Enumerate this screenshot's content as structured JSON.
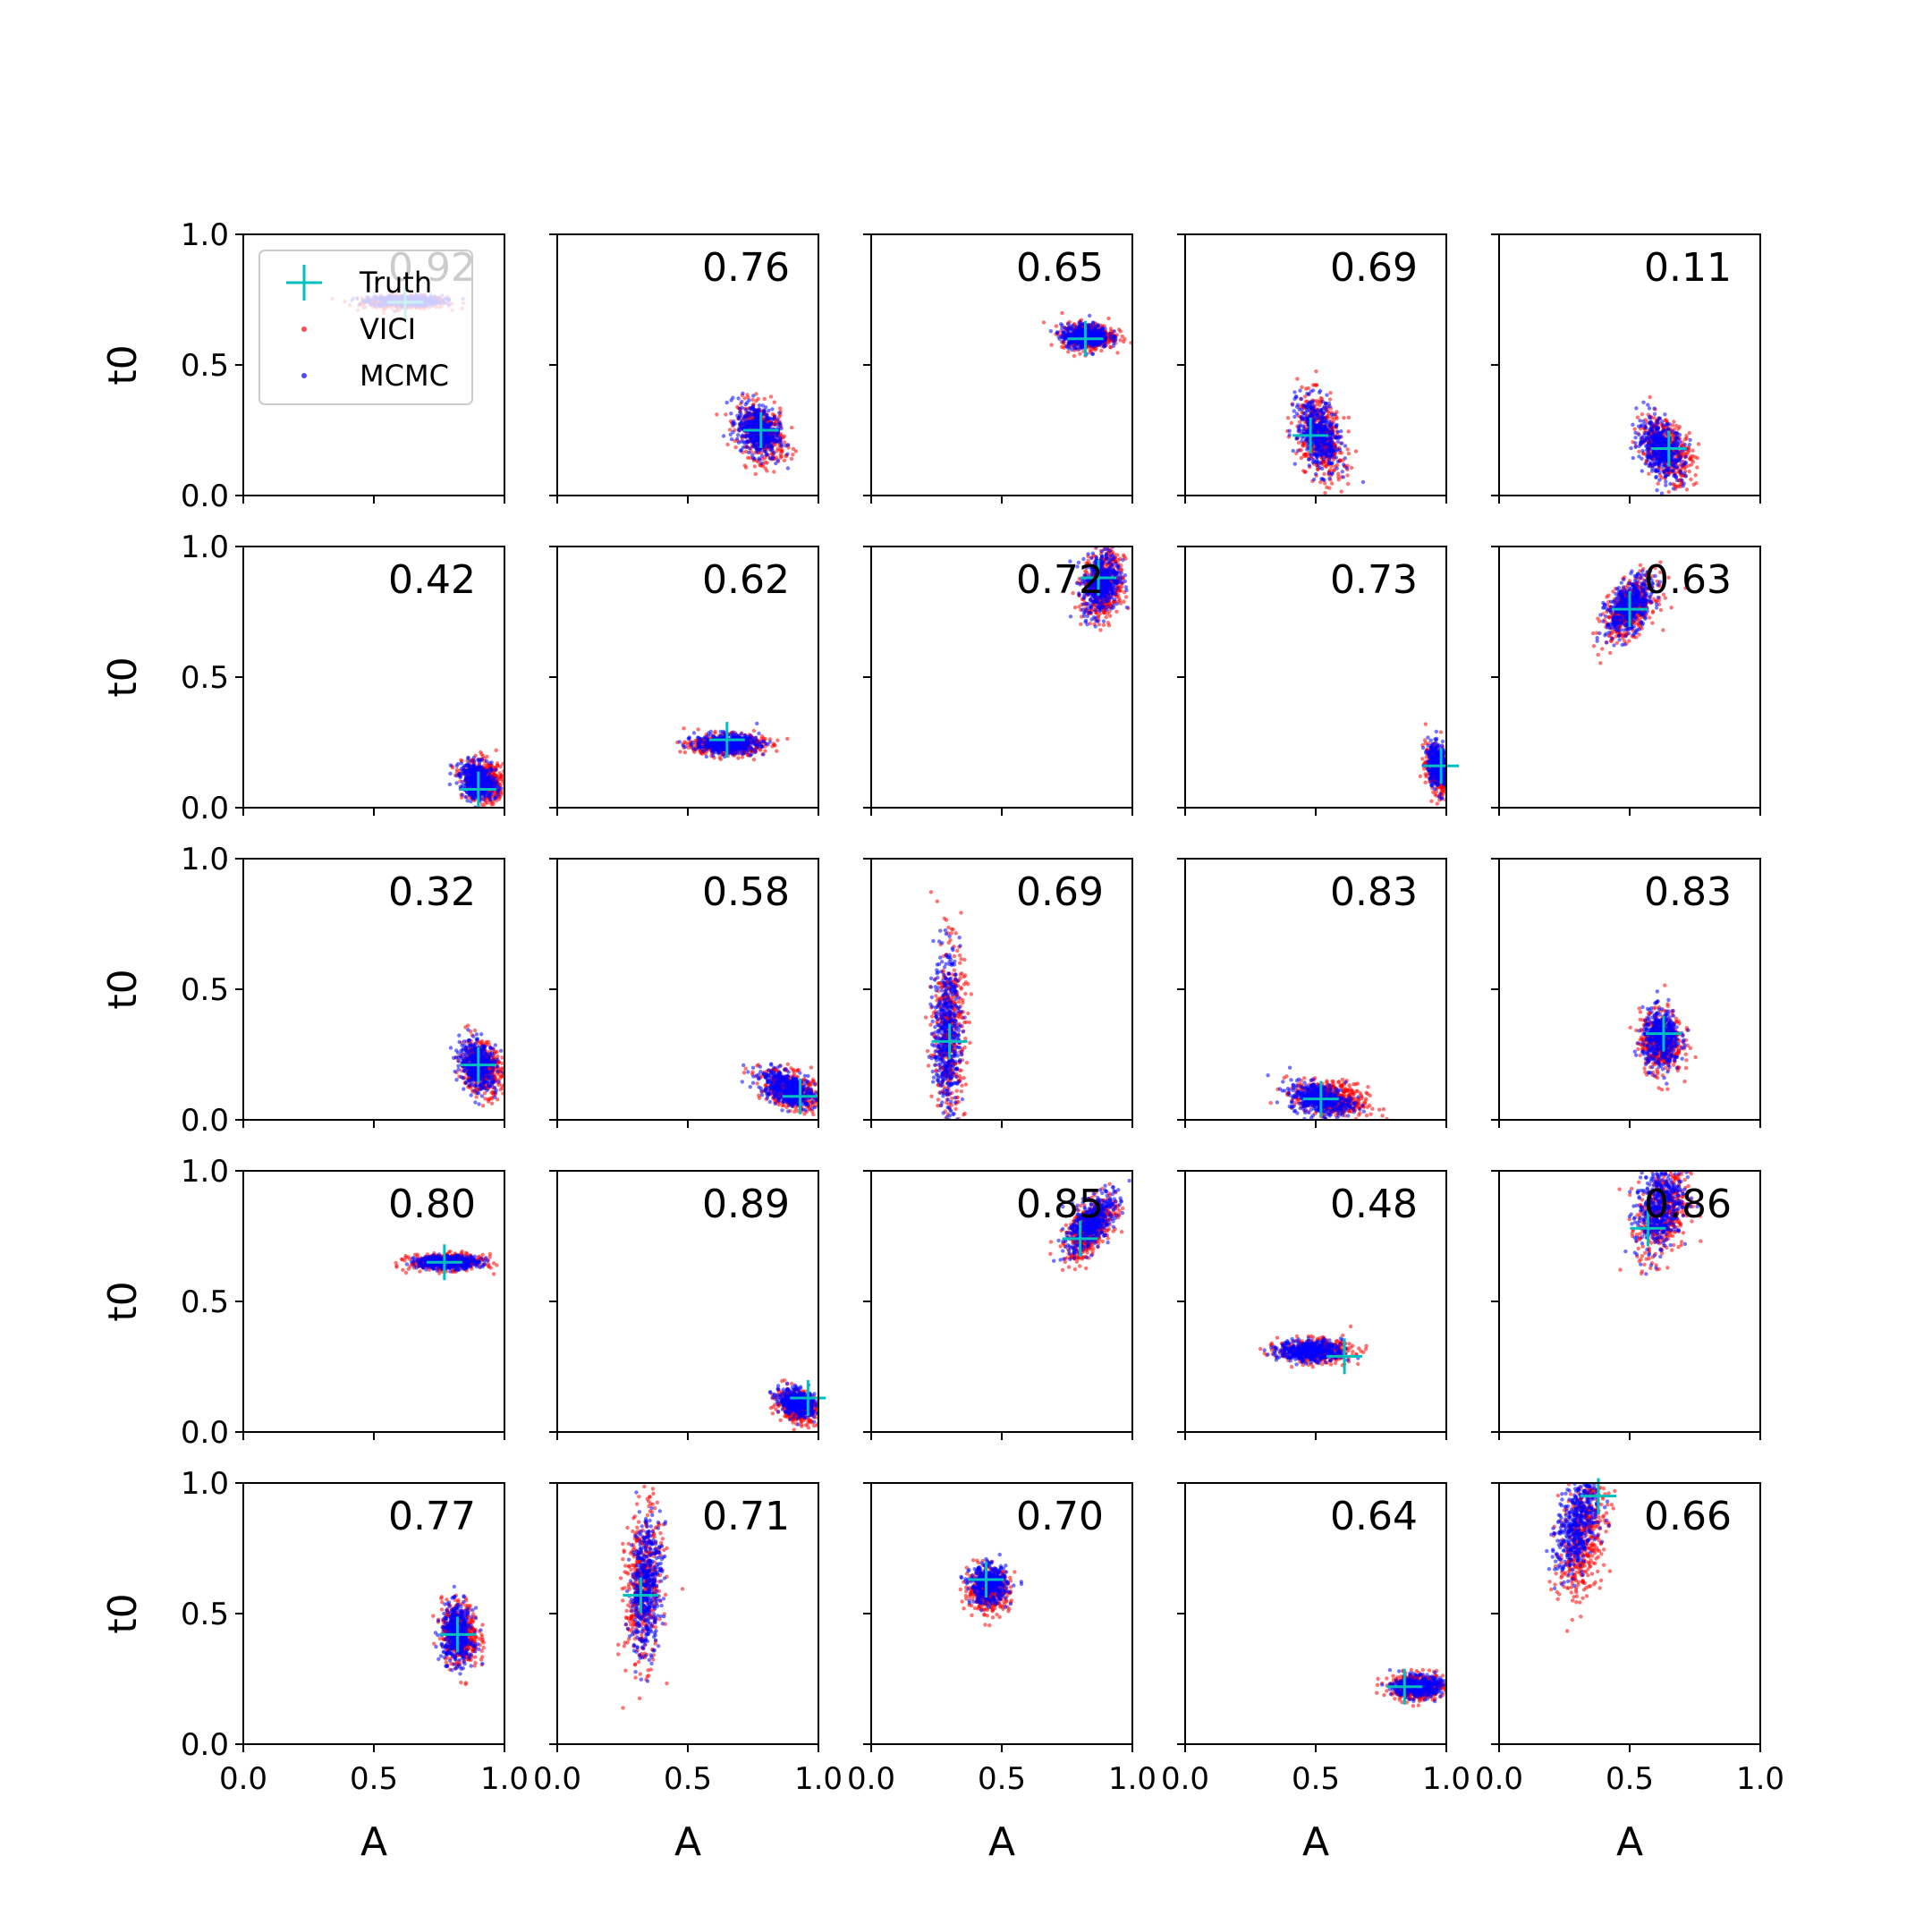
{
  "chart_data": {
    "type": "scatter",
    "rows": 5,
    "cols": 5,
    "xlabel": "A",
    "ylabel": "t0",
    "xlim": [
      0.0,
      1.0
    ],
    "ylim": [
      0.0,
      1.0
    ],
    "xticks": [
      "0.0",
      "0.5",
      "1.0"
    ],
    "yticks": [
      "0.0",
      "0.5",
      "1.0"
    ],
    "legend": {
      "location": "upper-left of first panel",
      "entries": [
        {
          "label": "Truth",
          "marker": "plus",
          "color": "#00bfbf"
        },
        {
          "label": "VICI",
          "marker": "dot",
          "color": "#ff0000"
        },
        {
          "label": "MCMC",
          "marker": "dot",
          "color": "#0000ff"
        }
      ]
    },
    "series_colors": {
      "vici": "#ff0000",
      "mcmc": "#0000ff",
      "truth": "#00bfbf"
    },
    "panels": [
      {
        "overlap": "0.92",
        "truth": [
          0.62,
          0.74
        ],
        "vici": {
          "mean": [
            0.62,
            0.74
          ],
          "sd": [
            0.08,
            0.012
          ],
          "rho": 0.0
        },
        "mcmc": {
          "mean": [
            0.62,
            0.745
          ],
          "sd": [
            0.07,
            0.01
          ],
          "rho": 0.0
        }
      },
      {
        "overlap": "0.76",
        "truth": [
          0.78,
          0.25
        ],
        "vici": {
          "mean": [
            0.78,
            0.24
          ],
          "sd": [
            0.045,
            0.055
          ],
          "rho": -0.3
        },
        "mcmc": {
          "mean": [
            0.77,
            0.25
          ],
          "sd": [
            0.04,
            0.05
          ],
          "rho": -0.3
        }
      },
      {
        "overlap": "0.65",
        "truth": [
          0.82,
          0.6
        ],
        "vici": {
          "mean": [
            0.83,
            0.61
          ],
          "sd": [
            0.05,
            0.025
          ],
          "rho": 0.0
        },
        "mcmc": {
          "mean": [
            0.82,
            0.61
          ],
          "sd": [
            0.045,
            0.022
          ],
          "rho": 0.0
        }
      },
      {
        "overlap": "0.69",
        "truth": [
          0.48,
          0.23
        ],
        "vici": {
          "mean": [
            0.52,
            0.22
          ],
          "sd": [
            0.045,
            0.08
          ],
          "rho": -0.4
        },
        "mcmc": {
          "mean": [
            0.51,
            0.23
          ],
          "sd": [
            0.04,
            0.07
          ],
          "rho": -0.4
        }
      },
      {
        "overlap": "0.11",
        "truth": [
          0.65,
          0.18
        ],
        "vici": {
          "mean": [
            0.64,
            0.18
          ],
          "sd": [
            0.05,
            0.06
          ],
          "rho": -0.4
        },
        "mcmc": {
          "mean": [
            0.62,
            0.18
          ],
          "sd": [
            0.045,
            0.055
          ],
          "rho": -0.4
        }
      },
      {
        "overlap": "0.42",
        "truth": [
          0.9,
          0.07
        ],
        "vici": {
          "mean": [
            0.92,
            0.1
          ],
          "sd": [
            0.04,
            0.04
          ],
          "rho": -0.2
        },
        "mcmc": {
          "mean": [
            0.9,
            0.1
          ],
          "sd": [
            0.035,
            0.035
          ],
          "rho": -0.2
        }
      },
      {
        "overlap": "0.62",
        "truth": [
          0.65,
          0.26
        ],
        "vici": {
          "mean": [
            0.65,
            0.24
          ],
          "sd": [
            0.07,
            0.02
          ],
          "rho": 0.0
        },
        "mcmc": {
          "mean": [
            0.65,
            0.245
          ],
          "sd": [
            0.06,
            0.018
          ],
          "rho": 0.0
        }
      },
      {
        "overlap": "0.72",
        "truth": [
          0.87,
          0.88
        ],
        "vici": {
          "mean": [
            0.89,
            0.85
          ],
          "sd": [
            0.04,
            0.07
          ],
          "rho": 0.2
        },
        "mcmc": {
          "mean": [
            0.88,
            0.86
          ],
          "sd": [
            0.035,
            0.06
          ],
          "rho": 0.2
        }
      },
      {
        "overlap": "0.73",
        "truth": [
          0.98,
          0.16
        ],
        "vici": {
          "mean": [
            0.97,
            0.14
          ],
          "sd": [
            0.025,
            0.045
          ],
          "rho": -0.3
        },
        "mcmc": {
          "mean": [
            0.97,
            0.16
          ],
          "sd": [
            0.02,
            0.04
          ],
          "rho": -0.3
        }
      },
      {
        "overlap": "0.63",
        "truth": [
          0.5,
          0.76
        ],
        "vici": {
          "mean": [
            0.5,
            0.76
          ],
          "sd": [
            0.05,
            0.06
          ],
          "rho": 0.5
        },
        "mcmc": {
          "mean": [
            0.5,
            0.77
          ],
          "sd": [
            0.045,
            0.055
          ],
          "rho": 0.5
        }
      },
      {
        "overlap": "0.32",
        "truth": [
          0.9,
          0.21
        ],
        "vici": {
          "mean": [
            0.91,
            0.2
          ],
          "sd": [
            0.04,
            0.05
          ],
          "rho": -0.2
        },
        "mcmc": {
          "mean": [
            0.9,
            0.21
          ],
          "sd": [
            0.035,
            0.045
          ],
          "rho": -0.2
        }
      },
      {
        "overlap": "0.58",
        "truth": [
          0.93,
          0.09
        ],
        "vici": {
          "mean": [
            0.9,
            0.11
          ],
          "sd": [
            0.06,
            0.04
          ],
          "rho": -0.5
        },
        "mcmc": {
          "mean": [
            0.88,
            0.12
          ],
          "sd": [
            0.055,
            0.035
          ],
          "rho": -0.5
        }
      },
      {
        "overlap": "0.69",
        "truth": [
          0.3,
          0.3
        ],
        "vici": {
          "mean": [
            0.3,
            0.33
          ],
          "sd": [
            0.03,
            0.17
          ],
          "rho": 0.0
        },
        "mcmc": {
          "mean": [
            0.29,
            0.34
          ],
          "sd": [
            0.025,
            0.15
          ],
          "rho": 0.0
        }
      },
      {
        "overlap": "0.83",
        "truth": [
          0.52,
          0.08
        ],
        "vici": {
          "mean": [
            0.56,
            0.08
          ],
          "sd": [
            0.07,
            0.035
          ],
          "rho": -0.3
        },
        "mcmc": {
          "mean": [
            0.52,
            0.08
          ],
          "sd": [
            0.06,
            0.03
          ],
          "rho": -0.3
        }
      },
      {
        "overlap": "0.83",
        "truth": [
          0.63,
          0.33
        ],
        "vici": {
          "mean": [
            0.62,
            0.3
          ],
          "sd": [
            0.04,
            0.06
          ],
          "rho": 0.0
        },
        "mcmc": {
          "mean": [
            0.62,
            0.31
          ],
          "sd": [
            0.035,
            0.055
          ],
          "rho": 0.0
        }
      },
      {
        "overlap": "0.80",
        "truth": [
          0.77,
          0.65
        ],
        "vici": {
          "mean": [
            0.78,
            0.65
          ],
          "sd": [
            0.07,
            0.015
          ],
          "rho": 0.0
        },
        "mcmc": {
          "mean": [
            0.78,
            0.65
          ],
          "sd": [
            0.06,
            0.012
          ],
          "rho": 0.0
        }
      },
      {
        "overlap": "0.89",
        "truth": [
          0.96,
          0.13
        ],
        "vici": {
          "mean": [
            0.92,
            0.1
          ],
          "sd": [
            0.04,
            0.03
          ],
          "rho": -0.3
        },
        "mcmc": {
          "mean": [
            0.92,
            0.11
          ],
          "sd": [
            0.035,
            0.025
          ],
          "rho": -0.3
        }
      },
      {
        "overlap": "0.85",
        "truth": [
          0.8,
          0.74
        ],
        "vici": {
          "mean": [
            0.84,
            0.78
          ],
          "sd": [
            0.05,
            0.06
          ],
          "rho": 0.6
        },
        "mcmc": {
          "mean": [
            0.84,
            0.8
          ],
          "sd": [
            0.045,
            0.055
          ],
          "rho": 0.6
        }
      },
      {
        "overlap": "0.48",
        "truth": [
          0.61,
          0.29
        ],
        "vici": {
          "mean": [
            0.5,
            0.31
          ],
          "sd": [
            0.07,
            0.022
          ],
          "rho": 0.0
        },
        "mcmc": {
          "mean": [
            0.48,
            0.31
          ],
          "sd": [
            0.06,
            0.02
          ],
          "rho": 0.0
        }
      },
      {
        "overlap": "0.86",
        "truth": [
          0.57,
          0.78
        ],
        "vici": {
          "mean": [
            0.63,
            0.84
          ],
          "sd": [
            0.05,
            0.09
          ],
          "rho": 0.3
        },
        "mcmc": {
          "mean": [
            0.61,
            0.86
          ],
          "sd": [
            0.045,
            0.08
          ],
          "rho": 0.3
        }
      },
      {
        "overlap": "0.77",
        "truth": [
          0.82,
          0.42
        ],
        "vici": {
          "mean": [
            0.83,
            0.42
          ],
          "sd": [
            0.035,
            0.06
          ],
          "rho": -0.1
        },
        "mcmc": {
          "mean": [
            0.82,
            0.42
          ],
          "sd": [
            0.03,
            0.055
          ],
          "rho": -0.1
        }
      },
      {
        "overlap": "0.71",
        "truth": [
          0.32,
          0.57
        ],
        "vici": {
          "mean": [
            0.33,
            0.6
          ],
          "sd": [
            0.035,
            0.15
          ],
          "rho": 0.2
        },
        "mcmc": {
          "mean": [
            0.34,
            0.61
          ],
          "sd": [
            0.03,
            0.13
          ],
          "rho": 0.2
        }
      },
      {
        "overlap": "0.70",
        "truth": [
          0.44,
          0.63
        ],
        "vici": {
          "mean": [
            0.45,
            0.59
          ],
          "sd": [
            0.04,
            0.04
          ],
          "rho": 0.0
        },
        "mcmc": {
          "mean": [
            0.45,
            0.61
          ],
          "sd": [
            0.035,
            0.035
          ],
          "rho": 0.0
        }
      },
      {
        "overlap": "0.64",
        "truth": [
          0.84,
          0.22
        ],
        "vici": {
          "mean": [
            0.89,
            0.22
          ],
          "sd": [
            0.05,
            0.025
          ],
          "rho": 0.0
        },
        "mcmc": {
          "mean": [
            0.89,
            0.22
          ],
          "sd": [
            0.045,
            0.02
          ],
          "rho": 0.0
        }
      },
      {
        "overlap": "0.66",
        "truth": [
          0.38,
          0.95
        ],
        "vici": {
          "mean": [
            0.32,
            0.8
          ],
          "sd": [
            0.045,
            0.12
          ],
          "rho": 0.4
        },
        "mcmc": {
          "mean": [
            0.3,
            0.84
          ],
          "sd": [
            0.04,
            0.1
          ],
          "rho": 0.4
        }
      }
    ]
  }
}
